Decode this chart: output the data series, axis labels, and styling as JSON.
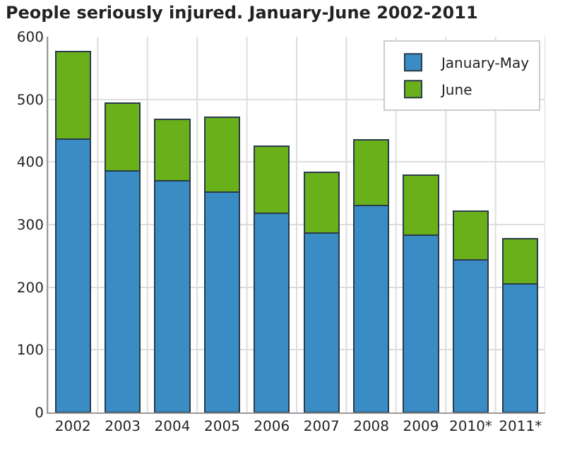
{
  "chart_data": {
    "type": "bar",
    "title": "People seriously injured. January-June 2002-2011",
    "categories": [
      "2002",
      "2003",
      "2004",
      "2005",
      "2006",
      "2007",
      "2008",
      "2009",
      "2010*",
      "2011*"
    ],
    "series": [
      {
        "name": "January-May",
        "color": "#3a8dc4",
        "values": [
          436,
          386,
          370,
          352,
          318,
          286,
          331,
          283,
          244,
          205
        ]
      },
      {
        "name": "June",
        "color": "#6ab01b",
        "values": [
          140,
          108,
          98,
          120,
          107,
          98,
          104,
          96,
          78,
          73
        ]
      }
    ],
    "stacked": true,
    "ylim": [
      0,
      600
    ],
    "yticks": [
      0,
      100,
      200,
      300,
      400,
      500,
      600
    ],
    "grid": true,
    "legend": "top right"
  }
}
